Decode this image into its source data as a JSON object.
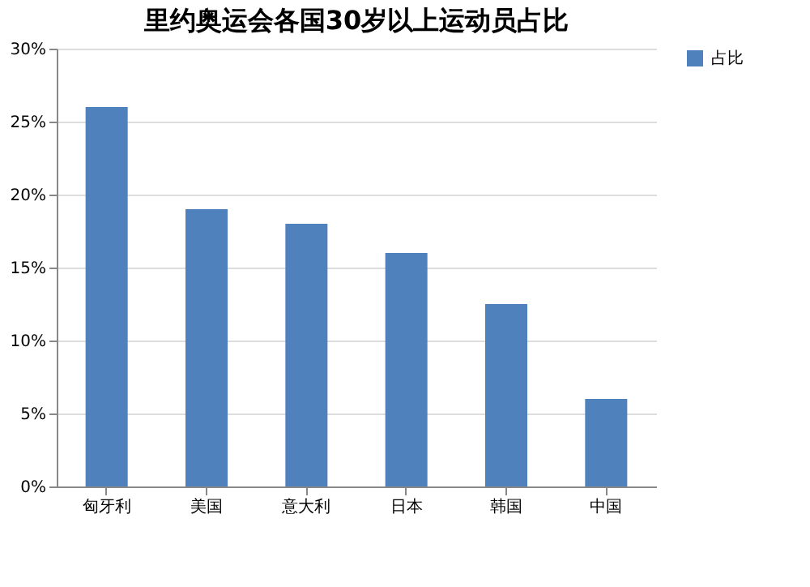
{
  "chart_data": {
    "type": "bar",
    "title": "里约奥运会各国30岁以上运动员占比",
    "categories": [
      "匈牙利",
      "美国",
      "意大利",
      "日本",
      "韩国",
      "中国"
    ],
    "series": [
      {
        "name": "占比",
        "color": "#4f81bd",
        "values": [
          26,
          19,
          18,
          16,
          12.5,
          6
        ]
      }
    ],
    "ylim": [
      0,
      30
    ],
    "yticks": [
      {
        "value": 0,
        "label": "0%"
      },
      {
        "value": 5,
        "label": "5%"
      },
      {
        "value": 10,
        "label": "10%"
      },
      {
        "value": 15,
        "label": "15%"
      },
      {
        "value": 20,
        "label": "20%"
      },
      {
        "value": 25,
        "label": "25%"
      },
      {
        "value": 30,
        "label": "30%"
      }
    ],
    "grid": "y",
    "legend": "right"
  }
}
